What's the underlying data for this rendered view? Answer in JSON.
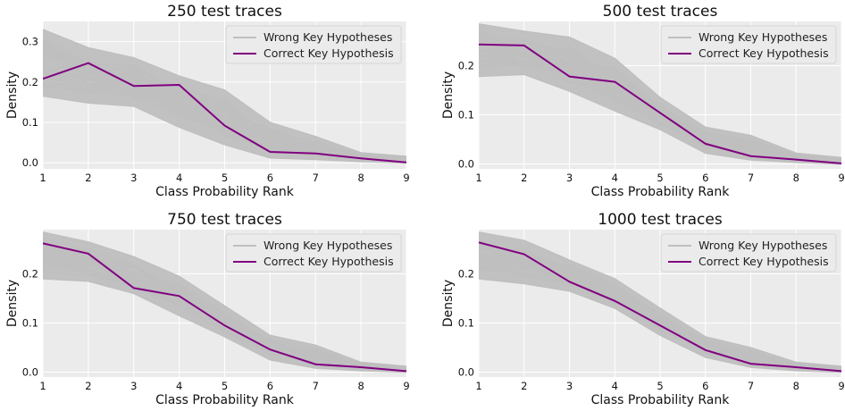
{
  "colors": {
    "background": "#ebebeb",
    "grid": "#ffffff",
    "wrong": "#bfbfbf",
    "correct": "#800080"
  },
  "legend": {
    "wrong_label": "Wrong Key Hypotheses",
    "correct_label": "Correct Key Hypothesis",
    "placement": "top-right"
  },
  "chart_data": [
    {
      "type": "line",
      "title": "250 test traces",
      "xlabel": "Class Probability Rank",
      "ylabel": "Density",
      "x": [
        1,
        2,
        3,
        4,
        5,
        6,
        7,
        8,
        9
      ],
      "xlim": [
        1,
        9
      ],
      "ylim": [
        -0.015,
        0.35
      ],
      "yticks": [
        0.0,
        0.1,
        0.2,
        0.3
      ],
      "grid": true,
      "series": [
        {
          "name": "Correct Key Hypothesis",
          "values": [
            0.208,
            0.247,
            0.19,
            0.193,
            0.092,
            0.027,
            0.023,
            0.011,
            0.001
          ]
        }
      ],
      "wrong_band": {
        "upper": [
          0.33,
          0.285,
          0.26,
          0.215,
          0.18,
          0.1,
          0.065,
          0.025,
          0.016
        ],
        "lower": [
          0.165,
          0.148,
          0.14,
          0.088,
          0.045,
          0.012,
          0.008,
          0.003,
          0.0
        ]
      }
    },
    {
      "type": "line",
      "title": "500 test traces",
      "xlabel": "Class Probability Rank",
      "ylabel": "Density",
      "x": [
        1,
        2,
        3,
        4,
        5,
        6,
        7,
        8,
        9
      ],
      "xlim": [
        1,
        9
      ],
      "ylim": [
        -0.01,
        0.29
      ],
      "yticks": [
        0.0,
        0.1,
        0.2
      ],
      "grid": true,
      "series": [
        {
          "name": "Correct Key Hypothesis",
          "values": [
            0.243,
            0.241,
            0.178,
            0.167,
            0.104,
            0.041,
            0.016,
            0.009,
            0.001
          ]
        }
      ],
      "wrong_band": {
        "upper": [
          0.285,
          0.27,
          0.258,
          0.215,
          0.135,
          0.075,
          0.058,
          0.022,
          0.013
        ],
        "lower": [
          0.178,
          0.182,
          0.148,
          0.108,
          0.07,
          0.022,
          0.008,
          0.003,
          0.0
        ]
      }
    },
    {
      "type": "line",
      "title": "750 test traces",
      "xlabel": "Class Probability Rank",
      "ylabel": "Density",
      "x": [
        1,
        2,
        3,
        4,
        5,
        6,
        7,
        8,
        9
      ],
      "xlim": [
        1,
        9
      ],
      "ylim": [
        -0.01,
        0.29
      ],
      "yticks": [
        0.0,
        0.1,
        0.2
      ],
      "grid": true,
      "series": [
        {
          "name": "Correct Key Hypothesis",
          "values": [
            0.262,
            0.241,
            0.171,
            0.155,
            0.095,
            0.046,
            0.016,
            0.01,
            0.002
          ]
        }
      ],
      "wrong_band": {
        "upper": [
          0.285,
          0.265,
          0.235,
          0.195,
          0.135,
          0.075,
          0.055,
          0.02,
          0.012
        ],
        "lower": [
          0.19,
          0.185,
          0.16,
          0.115,
          0.072,
          0.025,
          0.008,
          0.003,
          0.0
        ]
      }
    },
    {
      "type": "line",
      "title": "1000 test traces",
      "xlabel": "Class Probability Rank",
      "ylabel": "Density",
      "x": [
        1,
        2,
        3,
        4,
        5,
        6,
        7,
        8,
        9
      ],
      "xlim": [
        1,
        9
      ],
      "ylim": [
        -0.01,
        0.29
      ],
      "yticks": [
        0.0,
        0.1,
        0.2
      ],
      "grid": true,
      "series": [
        {
          "name": "Correct Key Hypothesis",
          "values": [
            0.264,
            0.24,
            0.184,
            0.145,
            0.095,
            0.045,
            0.017,
            0.01,
            0.002
          ]
        }
      ],
      "wrong_band": {
        "upper": [
          0.285,
          0.268,
          0.228,
          0.19,
          0.13,
          0.072,
          0.05,
          0.02,
          0.012
        ],
        "lower": [
          0.19,
          0.18,
          0.165,
          0.13,
          0.075,
          0.03,
          0.01,
          0.003,
          0.0
        ]
      }
    }
  ]
}
